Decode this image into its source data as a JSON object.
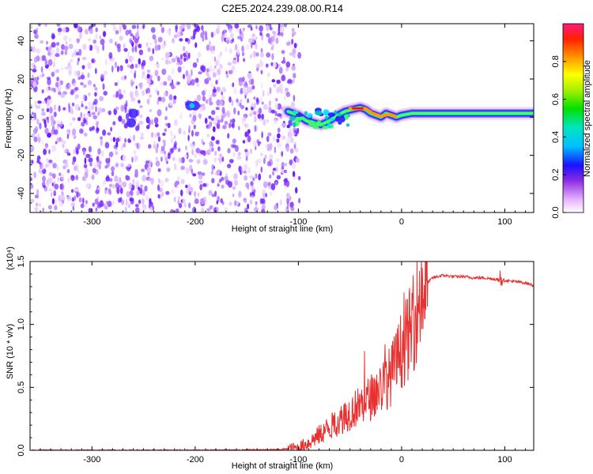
{
  "title": "C2E5.2024.239.08.00.R14",
  "chart_data": [
    {
      "type": "heatmap",
      "xlabel": "Height of straight line (km)",
      "ylabel": "Frequency (Hz)",
      "xlim": [
        -360,
        128
      ],
      "ylim": [
        -50,
        49
      ],
      "xticks": [
        -300,
        -200,
        -100,
        0,
        100
      ],
      "yticks": [
        -40,
        -20,
        0,
        20,
        40
      ],
      "noise_region_x": [
        -360,
        -105
      ],
      "signal_trace": {
        "x": [
          -110,
          -100,
          -92,
          -85,
          -78,
          -70,
          -62,
          -55,
          -48,
          -40,
          -35,
          -30,
          -25,
          -20,
          -15,
          -10,
          -5,
          0,
          10,
          20,
          40,
          60,
          80,
          100,
          128
        ],
        "y": [
          3,
          1,
          -2,
          -3,
          -4,
          -2,
          1,
          3,
          4,
          5,
          4,
          2,
          1,
          0,
          2,
          1,
          0,
          1,
          2,
          2,
          2,
          2,
          2,
          2,
          2
        ]
      },
      "colorbar": {
        "label": "Normalized spectral amplitude",
        "range": [
          0.0,
          1.0
        ],
        "ticks": [
          "0.0",
          "0.2",
          "0.4",
          "0.6",
          "0.8"
        ]
      }
    },
    {
      "type": "line",
      "xlabel": "Height of straight line (km)",
      "ylabel": "SNR (10 * v/v)",
      "scale_label": "(x10⁴)",
      "xlim": [
        -360,
        128
      ],
      "ylim": [
        0.0,
        1.5
      ],
      "xticks": [
        -300,
        -200,
        -100,
        0,
        100
      ],
      "yticks": [
        "0.0",
        "0.5",
        "1.0",
        "1.5"
      ],
      "series_color": "#e83030",
      "series": [
        {
          "name": "SNR",
          "x": [
            -360,
            -300,
            -200,
            -120,
            -100,
            -90,
            -80,
            -70,
            -60,
            -50,
            -40,
            -30,
            -20,
            -10,
            -5,
            0,
            5,
            10,
            15,
            20,
            25,
            30,
            40,
            50,
            60,
            70,
            80,
            90,
            95,
            100,
            110,
            120,
            128
          ],
          "values": [
            0.0,
            0.0,
            0.0,
            0.005,
            0.02,
            0.06,
            0.12,
            0.18,
            0.24,
            0.3,
            0.36,
            0.42,
            0.5,
            0.6,
            0.7,
            0.8,
            0.88,
            0.97,
            1.12,
            1.28,
            1.33,
            1.37,
            1.39,
            1.38,
            1.38,
            1.37,
            1.37,
            1.36,
            1.36,
            1.35,
            1.34,
            1.33,
            1.31
          ]
        }
      ]
    }
  ]
}
